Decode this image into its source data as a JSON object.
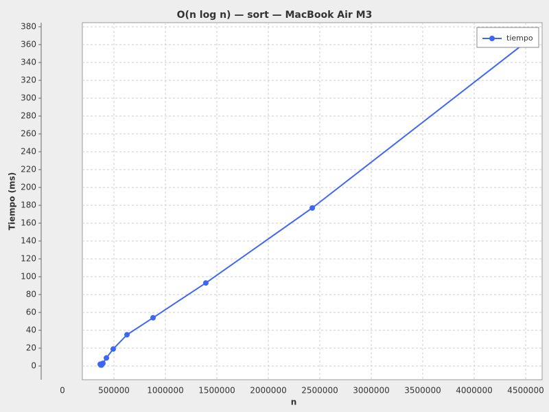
{
  "chart_data": {
    "type": "line",
    "title": "O(n log n) — sort — MacBook Air M3",
    "x_label": "n",
    "y_label": "Tiempo (ms)",
    "series": [
      {
        "name": "tiempo",
        "color": "#3d66f5",
        "x": [
          367000,
          373000,
          380000,
          393000,
          427000,
          493000,
          627000,
          880000,
          1393000,
          2427000,
          4527000
        ],
        "values": [
          2,
          1,
          1,
          3,
          9,
          19,
          35,
          54,
          93,
          177,
          365
        ]
      }
    ],
    "xlim": [
      -206667,
      4660000
    ],
    "xticks": [
      0,
      500000,
      1000000,
      1500000,
      2000000,
      2500000,
      3000000,
      3500000,
      4000000,
      4500000
    ],
    "ylim": [
      -15.4,
      384.6
    ],
    "yticks": [
      0,
      20,
      40,
      60,
      80,
      100,
      120,
      140,
      160,
      180,
      200,
      220,
      240,
      260,
      280,
      300,
      320,
      340,
      360,
      380
    ],
    "grid": true,
    "legend": "top-right"
  }
}
